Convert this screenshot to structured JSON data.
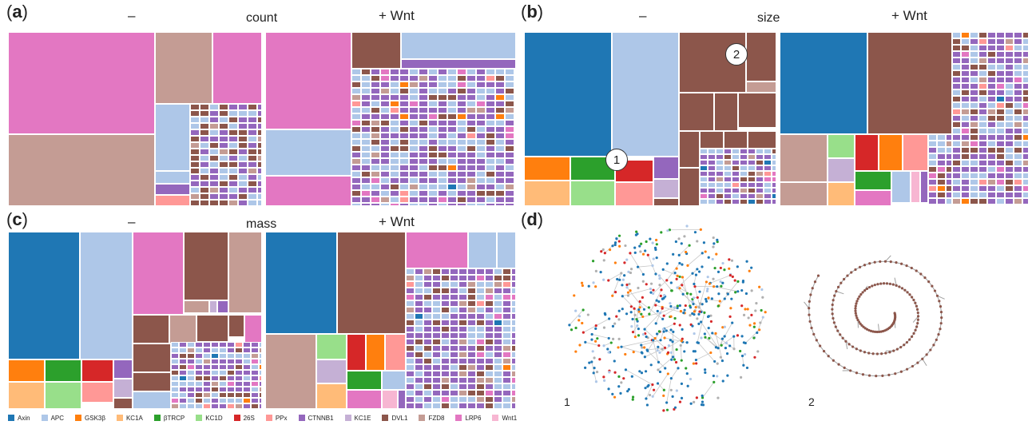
{
  "panels": [
    {
      "id": "a",
      "metric": "count"
    },
    {
      "id": "b",
      "metric": "size"
    },
    {
      "id": "c",
      "metric": "mass"
    },
    {
      "id": "d"
    }
  ],
  "conditions": {
    "minus": "–",
    "plus": "+ Wnt"
  },
  "callouts": [
    "1",
    "2"
  ],
  "network_labels": [
    "1",
    "2"
  ],
  "legend": [
    {
      "name": "Axin",
      "color": "#1f77b4"
    },
    {
      "name": "APC",
      "color": "#aec7e8"
    },
    {
      "name": "GSK3β",
      "color": "#ff7f0e"
    },
    {
      "name": "KC1A",
      "color": "#ffbb78"
    },
    {
      "name": "βTRCP",
      "color": "#2ca02c"
    },
    {
      "name": "KC1D",
      "color": "#98df8a"
    },
    {
      "name": "26S",
      "color": "#d62728"
    },
    {
      "name": "PPx",
      "color": "#ff9896"
    },
    {
      "name": "CTNNB1",
      "color": "#9467bd"
    },
    {
      "name": "KC1E",
      "color": "#c5b0d5"
    },
    {
      "name": "DVL1",
      "color": "#8c564b"
    },
    {
      "name": "FZD8",
      "color": "#c49c94"
    },
    {
      "name": "LRP6",
      "color": "#e377c2"
    },
    {
      "name": "Wnt1",
      "color": "#f7b6d2"
    }
  ],
  "chart_data": {
    "type": "treemap",
    "description_free": true,
    "series": [
      {
        "name": "Axin"
      },
      {
        "name": "APC"
      },
      {
        "name": "GSK3β"
      },
      {
        "name": "KC1A"
      },
      {
        "name": "βTRCP"
      },
      {
        "name": "KC1D"
      },
      {
        "name": "26S"
      },
      {
        "name": "PPx"
      },
      {
        "name": "CTNNB1"
      },
      {
        "name": "KC1E"
      },
      {
        "name": "DVL1"
      },
      {
        "name": "FZD8"
      },
      {
        "name": "LRP6"
      },
      {
        "name": "Wnt1"
      }
    ]
  }
}
